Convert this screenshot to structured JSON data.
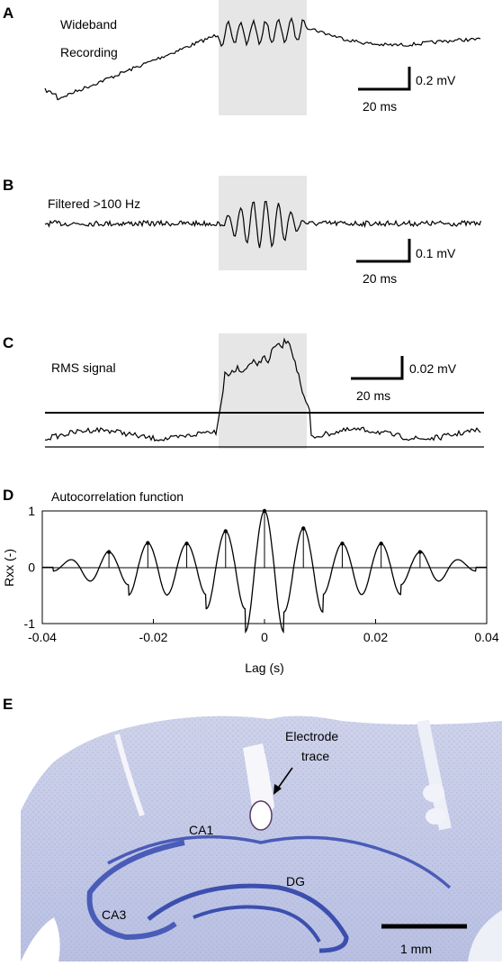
{
  "chart_data": [
    {
      "panel": "A",
      "type": "line",
      "label": "Wideband Recording",
      "label_lines": [
        "Wideband",
        "Recording"
      ],
      "shaded_region": "highlighted",
      "scalebar": {
        "y_value": 0.2,
        "y_label": "0.2 mV",
        "x_value": 20,
        "x_label": "20 ms"
      }
    },
    {
      "panel": "B",
      "type": "line",
      "label": "Filtered >100 Hz",
      "shaded_region": "highlighted",
      "scalebar": {
        "y_value": 0.1,
        "y_label": "0.1 mV",
        "x_value": 20,
        "x_label": "20 ms"
      }
    },
    {
      "panel": "C",
      "type": "line",
      "label": "RMS signal",
      "threshold_line": true,
      "shaded_region": "highlighted",
      "scalebar": {
        "y_value": 0.02,
        "y_label": "0.02 mV",
        "x_value": 20,
        "x_label": "20 ms"
      }
    },
    {
      "panel": "D",
      "type": "line",
      "title": "Autocorrelation function",
      "xlabel": "Lag (s)",
      "ylabel": "Rxx (-)",
      "xlim": [
        -0.04,
        0.04
      ],
      "ylim": [
        -1,
        1
      ],
      "x_ticks": [
        "-0.04",
        "-0.02",
        "0",
        "0.02",
        "0.04"
      ],
      "y_ticks": [
        "-1",
        "0",
        "1"
      ],
      "period_s": 0.007,
      "peaks": [
        {
          "lag": -0.028,
          "value": 0.27
        },
        {
          "lag": -0.021,
          "value": 0.43
        },
        {
          "lag": -0.014,
          "value": 0.42
        },
        {
          "lag": -0.007,
          "value": 0.64
        },
        {
          "lag": 0.0,
          "value": 1.0
        },
        {
          "lag": 0.007,
          "value": 0.69
        },
        {
          "lag": 0.014,
          "value": 0.42
        },
        {
          "lag": 0.021,
          "value": 0.42
        },
        {
          "lag": 0.028,
          "value": 0.27
        }
      ],
      "grid": false
    }
  ],
  "histology": {
    "panel": "E",
    "labels": {
      "electrode_line1": "Electrode",
      "electrode_line2": "trace",
      "ca1": "CA1",
      "ca3": "CA3",
      "dg": "DG"
    },
    "scalebar_label": "1 mm",
    "colors": {
      "tissue": "#c9cde6",
      "stain": "#4a5cb8"
    }
  }
}
